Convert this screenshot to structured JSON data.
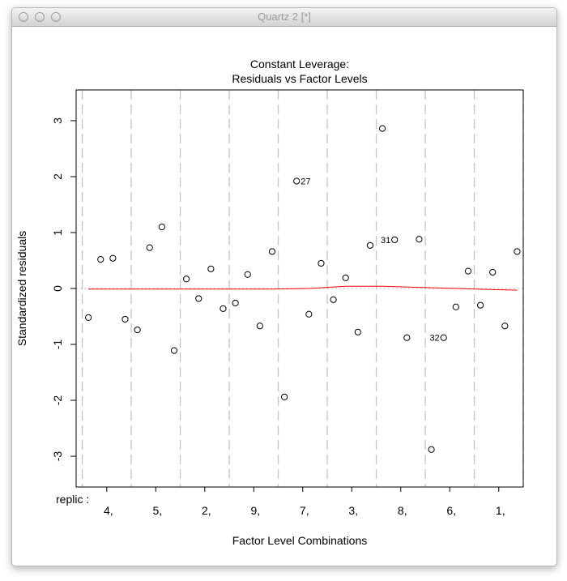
{
  "window": {
    "title": "Quartz 2 [*]"
  },
  "chart_data": {
    "type": "scatter",
    "title": "Constant Leverage:\nResiduals vs Factor Levels",
    "xlabel": "Factor Level Combinations",
    "ylabel": "Standardized residuals",
    "factor_label": "replic :",
    "factor_levels": [
      "4,",
      "5,",
      "2,",
      "9,",
      "7,",
      "3,",
      "8,",
      "6,",
      "1,"
    ],
    "ylim": [
      -3.55,
      3.55
    ],
    "y_ticks": [
      -3,
      -2,
      -1,
      0,
      1,
      2,
      3
    ],
    "n_obs": 36,
    "x": [
      1,
      2,
      3,
      4,
      5,
      6,
      7,
      8,
      9,
      10,
      11,
      12,
      13,
      14,
      15,
      16,
      17,
      18,
      19,
      20,
      21,
      22,
      23,
      24,
      25,
      26,
      27,
      28,
      29,
      30,
      31,
      32,
      33,
      34,
      35,
      36
    ],
    "residuals": [
      -0.52,
      0.52,
      0.54,
      -0.55,
      -0.74,
      0.73,
      1.1,
      -1.11,
      0.17,
      -0.18,
      0.35,
      -0.36,
      -0.26,
      0.25,
      -0.67,
      0.66,
      -1.94,
      1.92,
      -0.46,
      0.45,
      -0.2,
      0.19,
      -0.78,
      0.77,
      2.86,
      0.87,
      -0.88,
      0.88,
      -2.88,
      -0.88,
      -0.33,
      0.31,
      -0.3,
      0.29,
      -0.67,
      0.66
    ],
    "point_labels": [
      {
        "index": 17,
        "text": "27",
        "side": "right"
      },
      {
        "index": 25,
        "text": "31",
        "side": "left"
      },
      {
        "index": 29,
        "text": "32",
        "side": "left"
      }
    ],
    "smoother": {
      "color": "#ff0000",
      "x": [
        1,
        4,
        8,
        12,
        16,
        19,
        22,
        25,
        28,
        31,
        34,
        36
      ],
      "y": [
        -0.01,
        -0.01,
        -0.01,
        -0.01,
        -0.01,
        0.0,
        0.04,
        0.04,
        0.02,
        0.0,
        -0.02,
        -0.03
      ]
    },
    "zero_line": {
      "y": 0,
      "style": "dotted",
      "color": "#bfbfbf"
    },
    "group_separators": {
      "style": "dashed",
      "color": "#c4c4c4"
    }
  }
}
